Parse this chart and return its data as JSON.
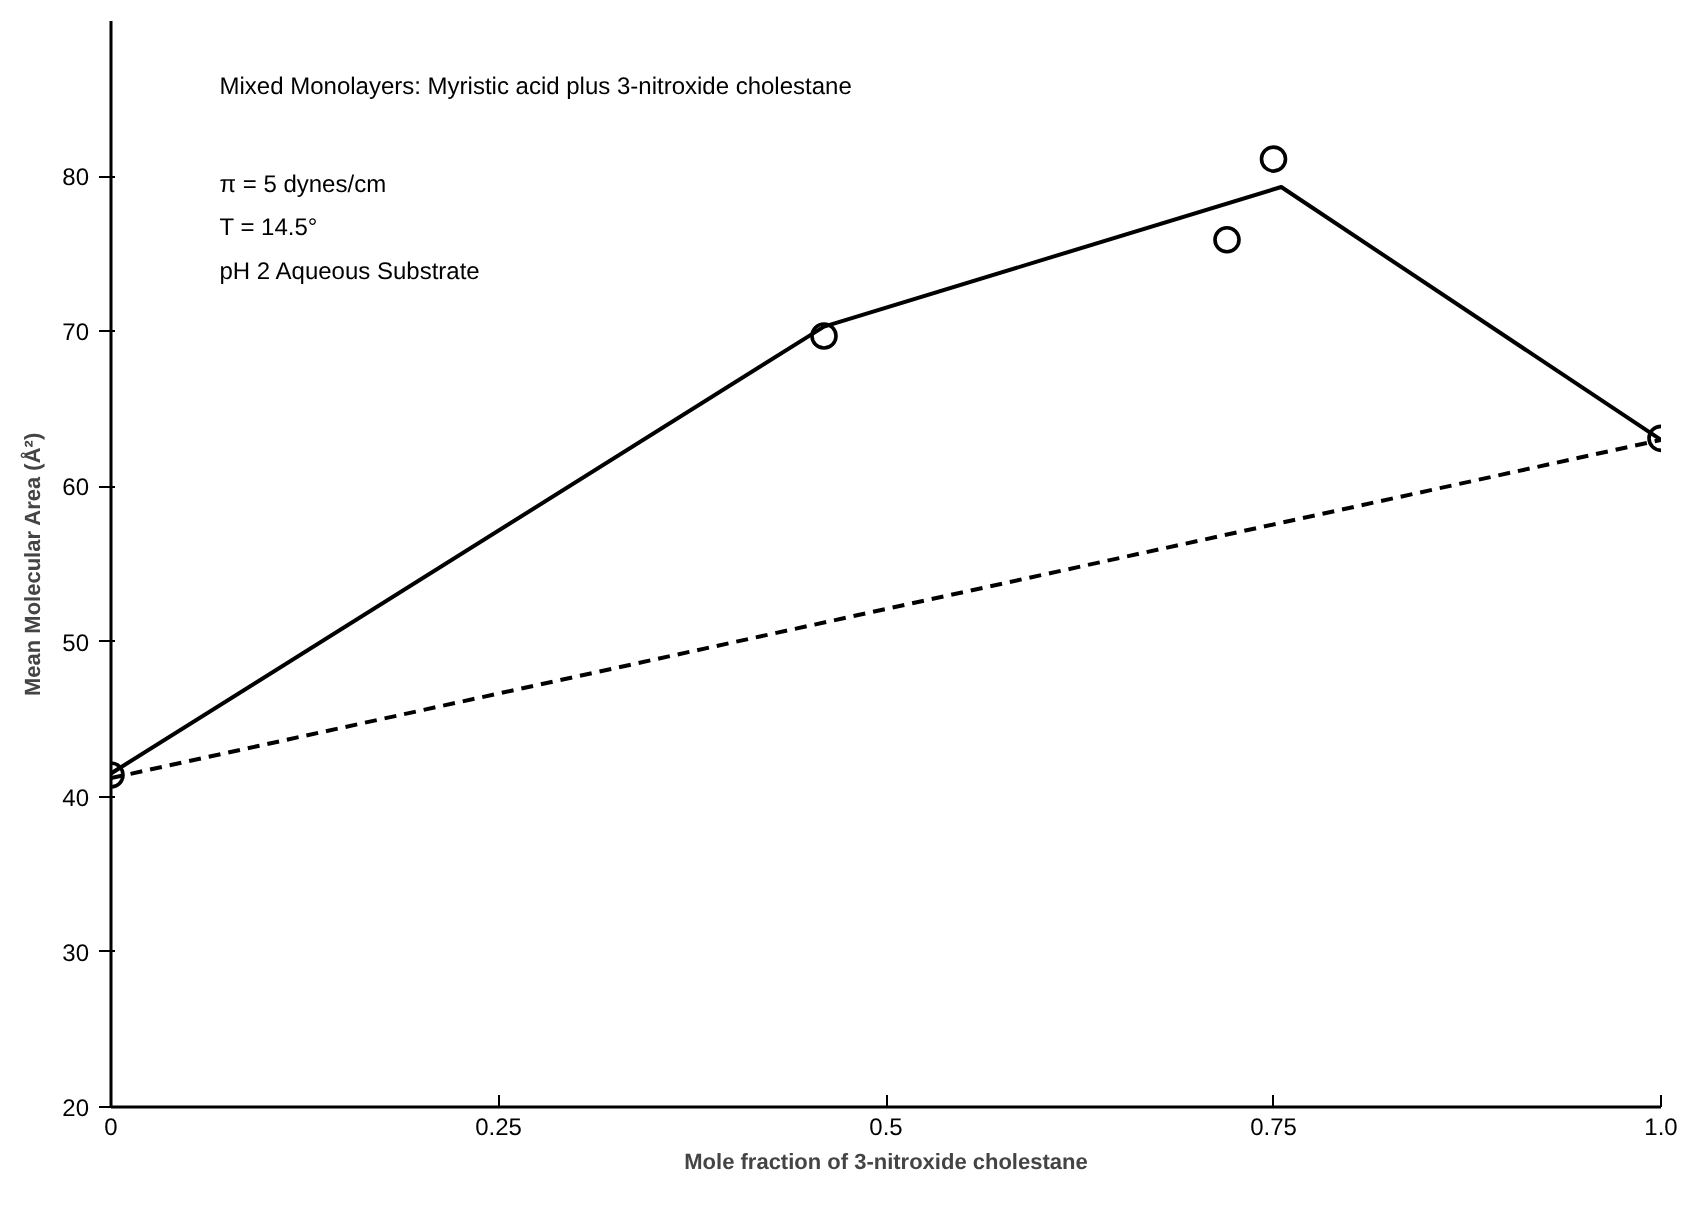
{
  "chart_data": {
    "type": "line",
    "xlabel": "Mole fraction of 3-nitroxide cholestane",
    "ylabel": "Mean Molecular Area (Å²)",
    "annotations": [
      "Mixed Monolayers: Myristic acid plus 3-nitroxide cholestane",
      "π = 5 dynes/cm",
      "T = 14.5°",
      "pH 2 Aqueous Substrate"
    ],
    "series": [
      {
        "type": "scatter",
        "marker": "circle",
        "color": "#000000",
        "x": [
          0,
          0.46,
          0.72,
          0.75,
          1.0
        ],
        "values": [
          41.4,
          69.7,
          75.9,
          81.1,
          63.1
        ]
      },
      {
        "line_style": "solid",
        "color": "#000000",
        "x": [
          0,
          0.46,
          0.755,
          1.0
        ],
        "values": [
          41.5,
          70.3,
          79.3,
          63.0
        ]
      },
      {
        "line_style": "dashed",
        "color": "#000000",
        "x": [
          0,
          1.0
        ],
        "values": [
          41.2,
          63.0
        ]
      }
    ],
    "xlim": [
      0,
      1.0
    ],
    "ylim": [
      20,
      90
    ],
    "xticks": [
      0,
      0.25,
      0.5,
      0.75,
      {
        "value": 1.0,
        "label": "1.0"
      }
    ],
    "yticks": [
      20,
      30,
      40,
      50,
      60,
      70,
      80
    ],
    "grid": false
  }
}
